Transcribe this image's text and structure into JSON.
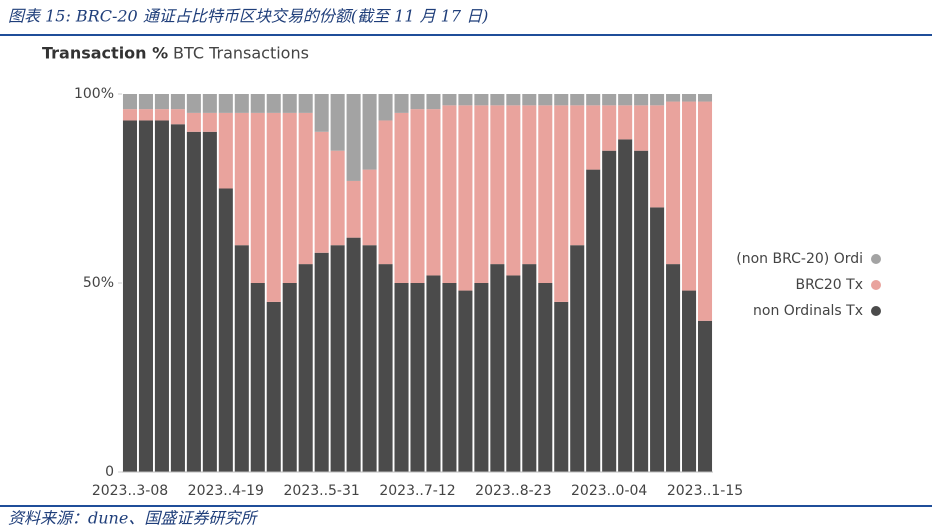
{
  "header": {
    "title": "图表 15: BRC-20 通证占比特币区块交易的份额(截至 11 月 17 日)"
  },
  "source": "资料来源：dune、国盛证券研究所",
  "chart_data": {
    "type": "stacked_bar",
    "title": "Transaction %",
    "subtitle": "BTC Transactions",
    "categories": [
      "2023..3-08",
      null,
      null,
      null,
      null,
      null,
      "2023..4-19",
      null,
      null,
      null,
      null,
      null,
      "2023..5-31",
      null,
      null,
      null,
      null,
      null,
      "2023..7-12",
      null,
      null,
      null,
      null,
      null,
      "2023..8-23",
      null,
      null,
      null,
      null,
      null,
      "2023..0-04",
      null,
      null,
      null,
      null,
      null,
      "2023..1-15"
    ],
    "series": [
      {
        "name": "non Ordinals Tx",
        "color": "#4b4b4b",
        "values": [
          93,
          93,
          93,
          92,
          90,
          90,
          75,
          60,
          50,
          45,
          50,
          55,
          58,
          60,
          62,
          60,
          55,
          50,
          50,
          52,
          50,
          48,
          50,
          55,
          52,
          55,
          50,
          45,
          60,
          80,
          85,
          88,
          85,
          70,
          55,
          48,
          40
        ]
      },
      {
        "name": "BRC20 Tx",
        "color": "#e9a39d",
        "values": [
          3,
          3,
          3,
          4,
          5,
          5,
          20,
          35,
          45,
          50,
          45,
          40,
          32,
          25,
          15,
          20,
          38,
          45,
          46,
          44,
          47,
          49,
          47,
          42,
          45,
          42,
          47,
          52,
          37,
          17,
          12,
          9,
          12,
          27,
          43,
          50,
          58
        ]
      },
      {
        "name": "(non BRC-20) Ordi",
        "color": "#a3a3a3",
        "values": [
          4,
          4,
          4,
          4,
          5,
          5,
          5,
          5,
          5,
          5,
          5,
          5,
          10,
          15,
          23,
          20,
          7,
          5,
          4,
          4,
          3,
          3,
          3,
          3,
          3,
          3,
          3,
          3,
          3,
          3,
          3,
          3,
          3,
          3,
          2,
          2,
          2
        ]
      }
    ],
    "ylim": [
      0,
      100
    ],
    "yticks": [
      0,
      {
        "value": 50,
        "label": "50%"
      },
      {
        "value": 100,
        "label": "100%"
      }
    ],
    "legend": "right"
  }
}
